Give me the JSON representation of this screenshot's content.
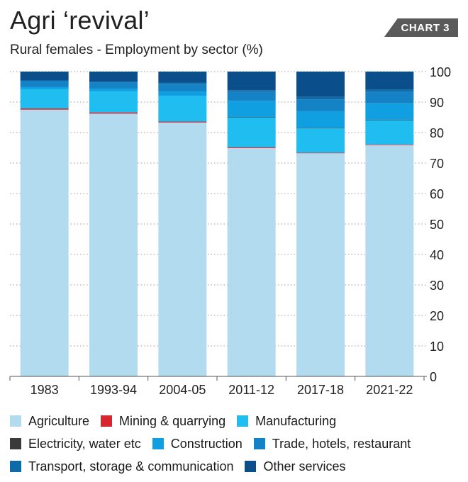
{
  "header": {
    "title": "Agri ‘revival’",
    "subtitle": "Rural females - Employment by sector (%)",
    "badge": "CHART 3"
  },
  "chart_data": {
    "type": "bar",
    "stacked": true,
    "title": "Agri ‘revival’",
    "subtitle": "Rural females - Employment by sector (%)",
    "categories": [
      "1983",
      "1993-94",
      "2004-05",
      "2011-12",
      "2017-18",
      "2021-22"
    ],
    "ylim": [
      0,
      100
    ],
    "yticks": [
      0,
      10,
      20,
      30,
      40,
      50,
      60,
      70,
      80,
      90,
      100
    ],
    "y_axis_side": "right",
    "grid": "horizontal dotted",
    "legend_position": "bottom",
    "series": [
      {
        "name": "Agriculture",
        "color": "#b3dbf0",
        "values": [
          87.5,
          86.2,
          83.3,
          74.9,
          73.2,
          75.9
        ]
      },
      {
        "name": "Mining & quarrying",
        "color": "#d7262f",
        "values": [
          0.4,
          0.4,
          0.3,
          0.3,
          0.2,
          0.2
        ]
      },
      {
        "name": "Manufacturing",
        "color": "#1fbdf0",
        "values": [
          6.4,
          7.0,
          8.4,
          9.8,
          8.1,
          8.0
        ]
      },
      {
        "name": "Electricity, water etc",
        "color": "#3a3a3a",
        "values": [
          0.0,
          0.0,
          0.0,
          0.1,
          0.1,
          0.1
        ]
      },
      {
        "name": "Construction",
        "color": "#109fe0",
        "values": [
          0.7,
          0.8,
          1.5,
          5.3,
          5.4,
          5.4
        ]
      },
      {
        "name": "Trade, hotels, restaurant",
        "color": "#1482c4",
        "values": [
          2.0,
          2.1,
          2.5,
          3.0,
          3.9,
          3.9
        ]
      },
      {
        "name": "Transport, storage & communication",
        "color": "#0f6aa8",
        "values": [
          0.1,
          0.2,
          0.3,
          0.5,
          0.8,
          0.6
        ]
      },
      {
        "name": "Other services",
        "color": "#0a4f8c",
        "values": [
          2.9,
          3.3,
          3.7,
          6.1,
          8.3,
          5.9
        ]
      }
    ]
  }
}
